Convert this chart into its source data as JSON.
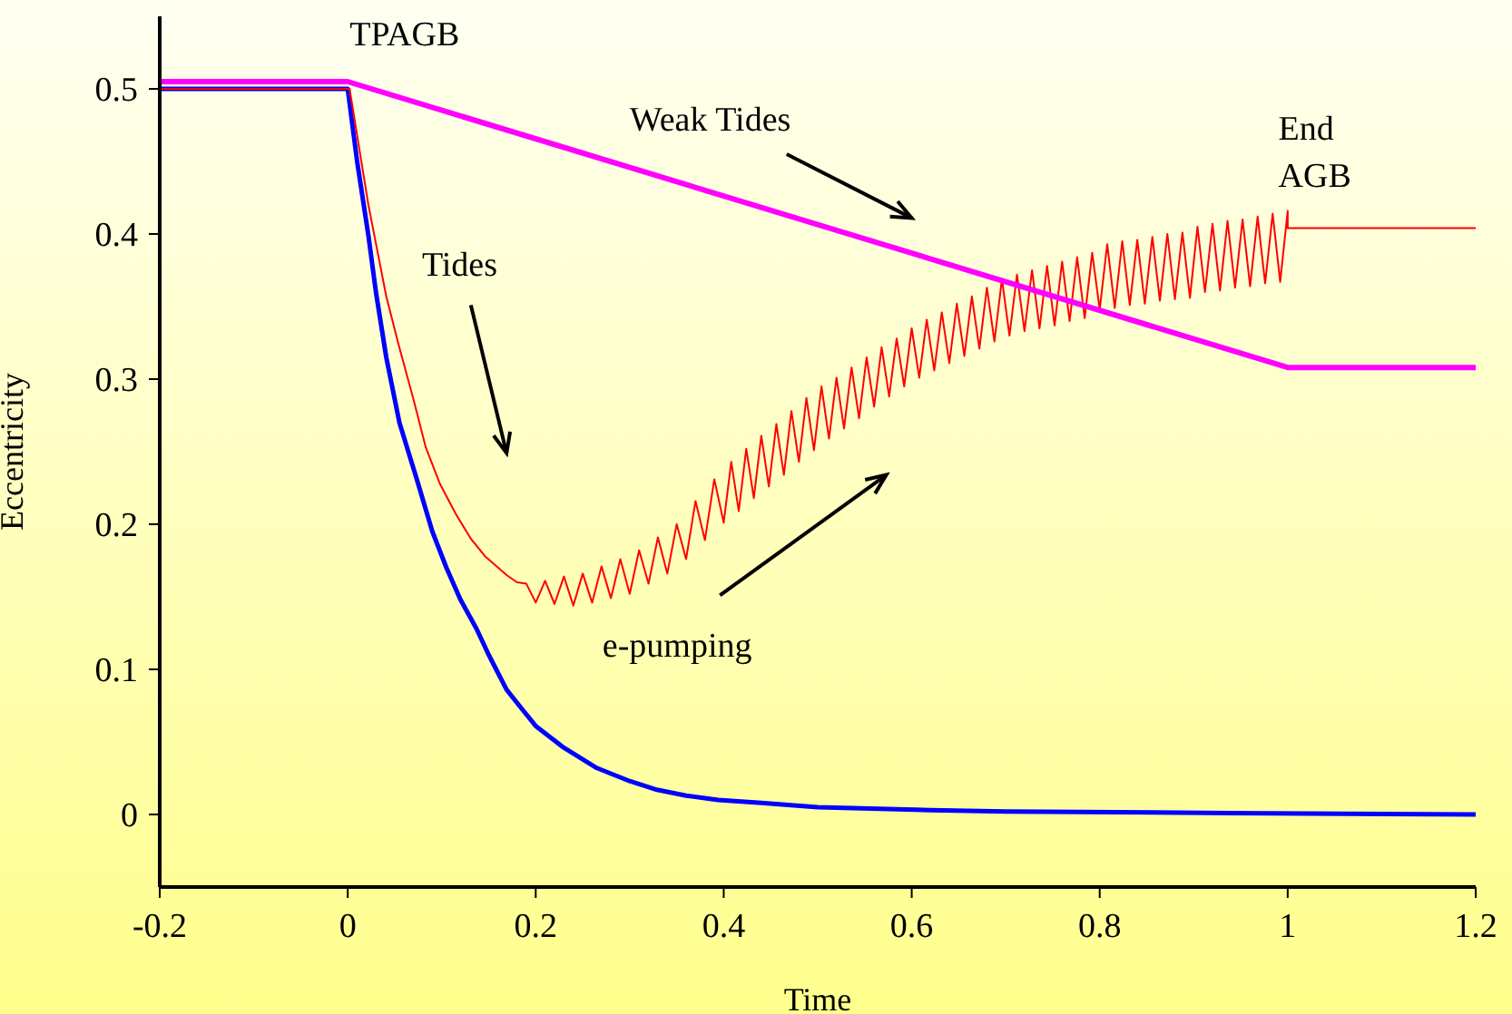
{
  "chart_data": {
    "type": "line",
    "xlabel": "Time",
    "ylabel": "Eccentricity",
    "xlim": [
      -0.2,
      1.2
    ],
    "xticks": [
      -0.2,
      0,
      0.2,
      0.4,
      0.6,
      0.8,
      1,
      1.2
    ],
    "ylim": [
      -0.05,
      0.55
    ],
    "yticks": [
      0,
      0.1,
      0.2,
      0.3,
      0.4,
      0.5
    ],
    "annotations": [
      "TPAGB",
      "Weak Tides",
      "End AGB",
      "Tides",
      "e-pumping"
    ],
    "series": [
      {
        "color": "#0000ff",
        "x": [
          -0.2,
          0,
          0.01,
          0.022,
          0.03,
          0.041,
          0.055,
          0.073,
          0.09,
          0.105,
          0.12,
          0.137,
          0.15,
          0.169,
          0.185,
          0.2,
          0.23,
          0.265,
          0.3,
          0.329,
          0.36,
          0.394,
          0.44,
          0.5,
          0.62,
          0.7,
          0.94,
          1.2
        ],
        "values": [
          0.5,
          0.5,
          0.45,
          0.399,
          0.36,
          0.315,
          0.27,
          0.232,
          0.195,
          0.17,
          0.148,
          0.128,
          0.11,
          0.086,
          0.073,
          0.061,
          0.046,
          0.032,
          0.023,
          0.017,
          0.013,
          0.01,
          0.008,
          0.005,
          0.003,
          0.002,
          0.001,
          0
        ]
      },
      {
        "color": "#ff0000",
        "x": [
          -0.2,
          0,
          0.002,
          0.022,
          0.041,
          0.054,
          0.07,
          0.083,
          0.098,
          0.115,
          0.131,
          0.146,
          0.169,
          0.18,
          0.19,
          0.2,
          0.21,
          0.22,
          0.23,
          0.24,
          0.25,
          0.26,
          0.27,
          0.28,
          0.29,
          0.3,
          0.31,
          0.32,
          0.33,
          0.34,
          0.35,
          0.36,
          0.37,
          0.38,
          0.39,
          0.4,
          0.408,
          0.416,
          0.424,
          0.432,
          0.44,
          0.448,
          0.456,
          0.464,
          0.472,
          0.48,
          0.488,
          0.496,
          0.504,
          0.512,
          0.52,
          0.528,
          0.536,
          0.544,
          0.552,
          0.56,
          0.568,
          0.576,
          0.584,
          0.592,
          0.6,
          0.608,
          0.616,
          0.624,
          0.632,
          0.64,
          0.648,
          0.656,
          0.664,
          0.672,
          0.68,
          0.688,
          0.696,
          0.704,
          0.712,
          0.72,
          0.728,
          0.736,
          0.744,
          0.752,
          0.76,
          0.768,
          0.776,
          0.784,
          0.792,
          0.8,
          0.808,
          0.816,
          0.824,
          0.832,
          0.84,
          0.848,
          0.856,
          0.864,
          0.872,
          0.88,
          0.888,
          0.896,
          0.904,
          0.912,
          0.92,
          0.928,
          0.936,
          0.944,
          0.952,
          0.96,
          0.968,
          0.976,
          0.984,
          0.992,
          1.0,
          1.0,
          1.2
        ],
        "values": [
          0.5,
          0.5,
          0.5,
          0.42,
          0.357,
          0.324,
          0.286,
          0.253,
          0.228,
          0.207,
          0.19,
          0.178,
          0.165,
          0.16,
          0.159,
          0.146,
          0.161,
          0.145,
          0.164,
          0.144,
          0.166,
          0.146,
          0.171,
          0.149,
          0.176,
          0.152,
          0.182,
          0.159,
          0.191,
          0.166,
          0.2,
          0.176,
          0.216,
          0.189,
          0.231,
          0.201,
          0.243,
          0.209,
          0.252,
          0.218,
          0.261,
          0.226,
          0.269,
          0.234,
          0.278,
          0.243,
          0.287,
          0.251,
          0.295,
          0.259,
          0.301,
          0.266,
          0.308,
          0.273,
          0.315,
          0.281,
          0.322,
          0.288,
          0.328,
          0.295,
          0.335,
          0.301,
          0.341,
          0.306,
          0.346,
          0.311,
          0.352,
          0.316,
          0.357,
          0.321,
          0.363,
          0.326,
          0.369,
          0.33,
          0.372,
          0.333,
          0.375,
          0.335,
          0.378,
          0.337,
          0.381,
          0.34,
          0.384,
          0.342,
          0.387,
          0.348,
          0.393,
          0.349,
          0.395,
          0.351,
          0.396,
          0.352,
          0.398,
          0.354,
          0.4,
          0.355,
          0.401,
          0.356,
          0.405,
          0.36,
          0.407,
          0.361,
          0.409,
          0.363,
          0.41,
          0.364,
          0.412,
          0.366,
          0.414,
          0.367,
          0.416,
          0.404,
          0.404
        ]
      },
      {
        "color": "#ff00ff",
        "x": [
          -0.2,
          0,
          1.0,
          1.2
        ],
        "values": [
          0.505,
          0.505,
          0.308,
          0.308
        ]
      }
    ]
  }
}
